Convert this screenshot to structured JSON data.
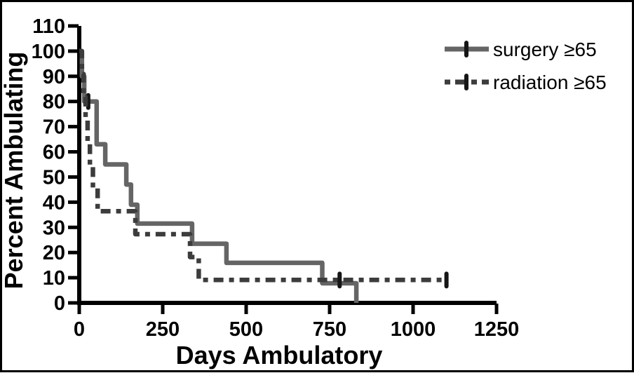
{
  "figure": {
    "background": "#ffffff",
    "frame_color": "#000000"
  },
  "chart_data": {
    "type": "line",
    "subtype": "kaplan-meier-step",
    "title": "",
    "xlabel": "Days Ambulatory",
    "ylabel": "Percent Ambulating",
    "xlim": [
      0,
      1250
    ],
    "ylim": [
      0,
      110
    ],
    "xticks": [
      0,
      250,
      500,
      750,
      1000,
      1250
    ],
    "yticks": [
      0,
      10,
      20,
      30,
      40,
      50,
      60,
      70,
      80,
      90,
      100,
      110
    ],
    "grid": false,
    "axis_color": "#000000",
    "legend_position": "top-right",
    "series": [
      {
        "name": "surgery ≥65",
        "style": "solid",
        "color": "#656565",
        "marker": "censor-tick",
        "marker_color": "#161616",
        "steps": [
          [
            0,
            100
          ],
          [
            8,
            100
          ],
          [
            8,
            90
          ],
          [
            15,
            90
          ],
          [
            15,
            80
          ],
          [
            52,
            80
          ],
          [
            52,
            63
          ],
          [
            78,
            63
          ],
          [
            78,
            55
          ],
          [
            141,
            55
          ],
          [
            141,
            47
          ],
          [
            155,
            47
          ],
          [
            155,
            39
          ],
          [
            174,
            39
          ],
          [
            174,
            31.5
          ],
          [
            338,
            31.5
          ],
          [
            338,
            23.5
          ],
          [
            441,
            23.5
          ],
          [
            441,
            15.9
          ],
          [
            728,
            15.9
          ],
          [
            728,
            7.8
          ],
          [
            830,
            7.8
          ],
          [
            830,
            0
          ]
        ],
        "censor_marks": [
          [
            27,
            80
          ]
        ]
      },
      {
        "name": "radiation ≥65",
        "style": "dashed",
        "color": "#3c3c3c",
        "marker": "censor-tick",
        "marker_color": "#161616",
        "steps": [
          [
            0,
            100
          ],
          [
            8,
            100
          ],
          [
            8,
            90.9
          ],
          [
            13,
            90.9
          ],
          [
            13,
            81.8
          ],
          [
            19,
            81.8
          ],
          [
            19,
            72.7
          ],
          [
            25,
            72.7
          ],
          [
            25,
            63.6
          ],
          [
            32,
            63.6
          ],
          [
            32,
            54.5
          ],
          [
            41,
            54.5
          ],
          [
            41,
            45.5
          ],
          [
            55,
            45.5
          ],
          [
            55,
            36.4
          ],
          [
            168,
            36.4
          ],
          [
            168,
            27.3
          ],
          [
            332,
            27.3
          ],
          [
            332,
            18.2
          ],
          [
            358,
            18.2
          ],
          [
            358,
            9.1
          ],
          [
            1100,
            9.1
          ]
        ],
        "censor_marks": [
          [
            780,
            9.1
          ],
          [
            1100,
            9.1
          ]
        ]
      }
    ]
  }
}
